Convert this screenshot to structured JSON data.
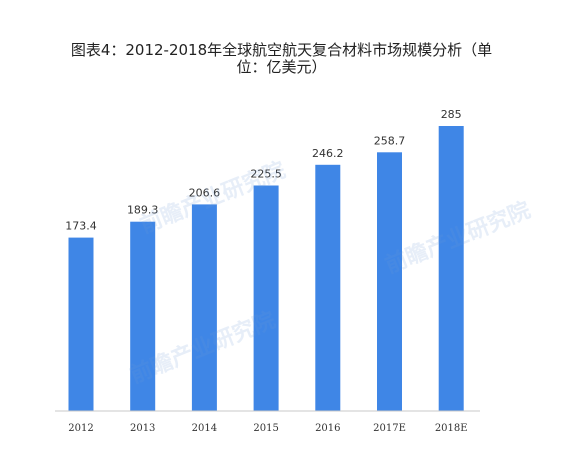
{
  "chart_data": {
    "type": "bar",
    "title": "图表4：2012-2018年全球航空航天复合材料市场规模分析（单位：亿美元）",
    "title_lines": [
      "图表4：2012-2018年全球航空航天复合材料市场规模分析（单",
      "位：亿美元）"
    ],
    "categories": [
      "2012",
      "2013",
      "2014",
      "2015",
      "2016",
      "2017E",
      "2018E"
    ],
    "values": [
      173.4,
      189.3,
      206.6,
      225.5,
      246.2,
      258.7,
      285
    ],
    "value_labels": [
      "173.4",
      "189.3",
      "206.6",
      "225.5",
      "246.2",
      "258.7",
      "285"
    ],
    "xlabel": "",
    "ylabel": "",
    "ylim": [
      0,
      290
    ],
    "grid": false,
    "legend": "none",
    "bar_color": "#3f86e6",
    "axis_color": "#c8c8c8"
  },
  "watermarks": [
    "前瞻产业研究院",
    "前瞻产业研究院",
    "前瞻产业研究院"
  ]
}
